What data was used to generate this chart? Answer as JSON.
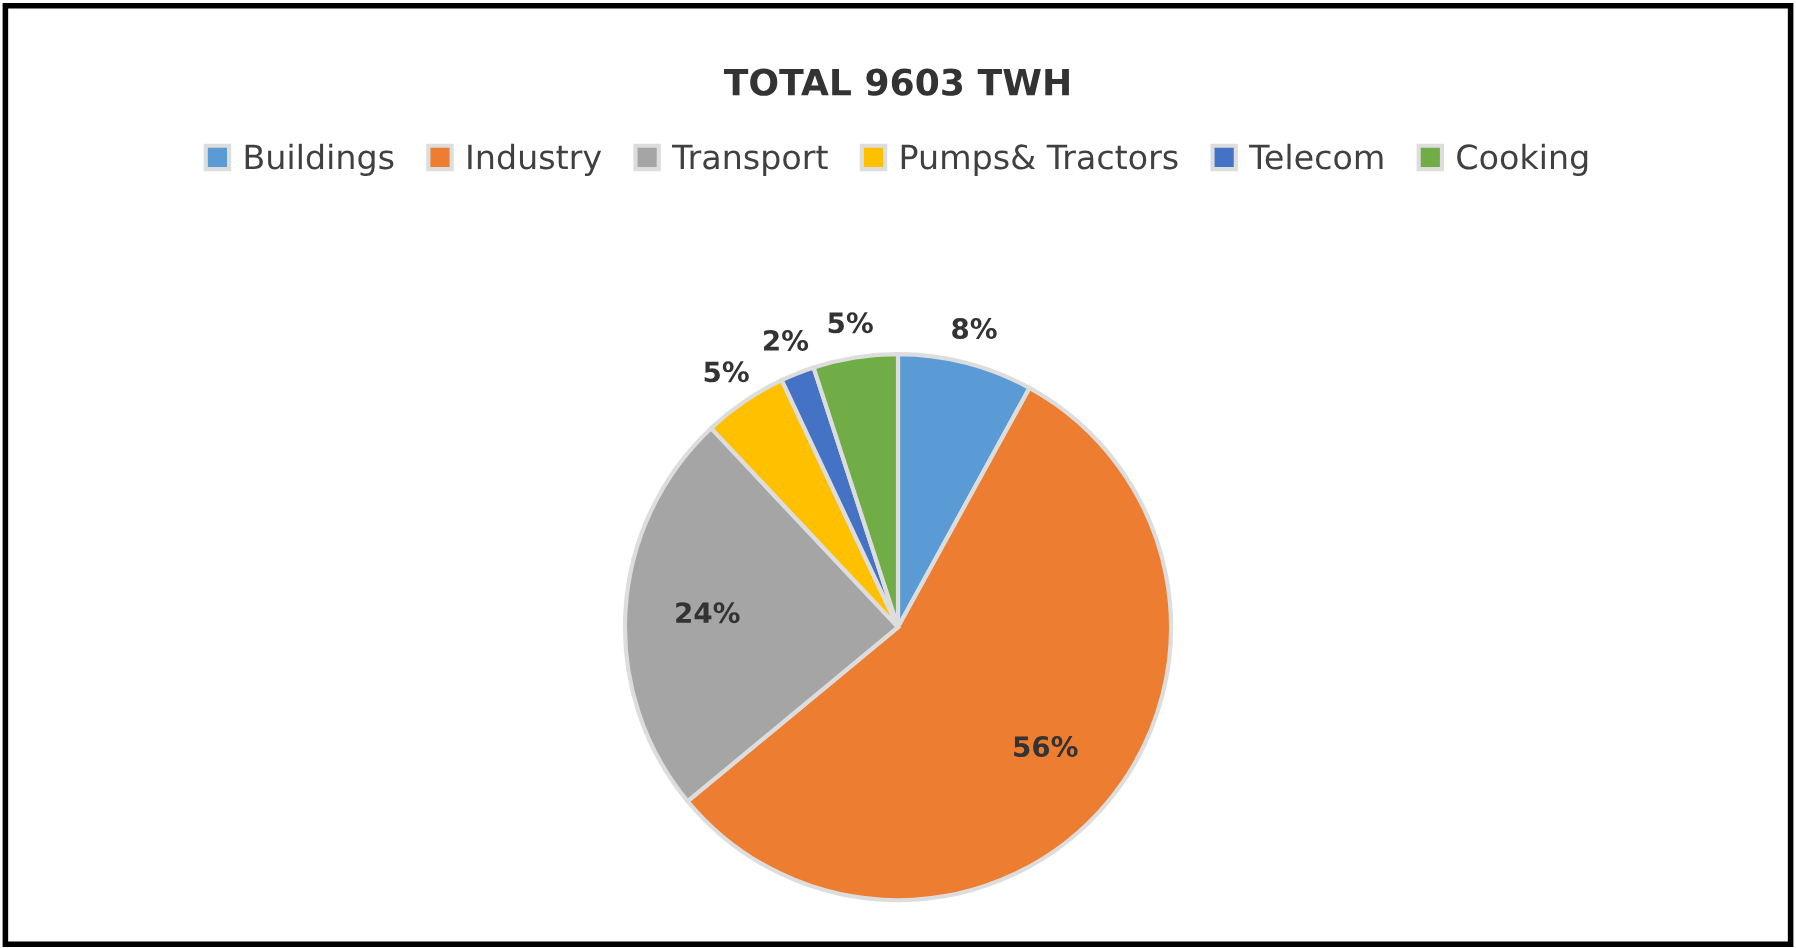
{
  "chart_data": {
    "type": "pie",
    "title": "TOTAL 9603 TWH",
    "categories": [
      "Buildings",
      "Industry",
      "Transport",
      "Pumps& Tractors",
      "Telecom",
      "Cooking"
    ],
    "values": [
      8,
      56,
      24,
      5,
      2,
      5
    ],
    "colors": [
      "#5b9bd5",
      "#ed7d31",
      "#a5a5a5",
      "#ffc000",
      "#4472c4",
      "#70ad47"
    ],
    "value_labels": [
      "8%",
      "56%",
      "24%",
      "5%",
      "2%",
      "5%"
    ],
    "legend": "top"
  }
}
